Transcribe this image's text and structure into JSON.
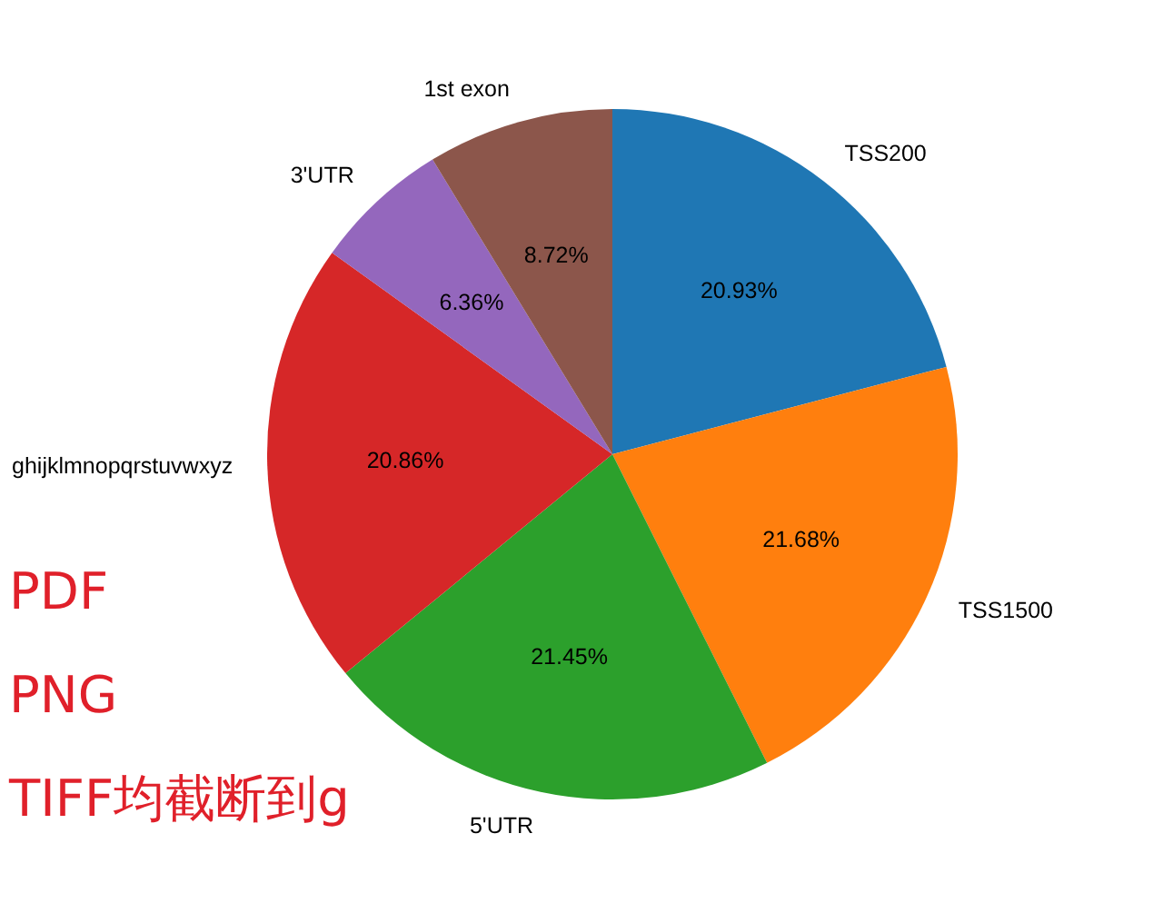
{
  "chart_data": {
    "type": "pie",
    "categories": [
      "TSS200",
      "TSS1500",
      "5'UTR",
      "ghijklmnopqrstuvwxyz",
      "3'UTR",
      "1st exon"
    ],
    "values": [
      20.93,
      21.68,
      21.45,
      20.86,
      6.36,
      8.72
    ],
    "colors": [
      "#1f77b4",
      "#ff7f0e",
      "#2ca02c",
      "#d62728",
      "#9467bd",
      "#8c564b"
    ],
    "value_labels": [
      "20.93%",
      "21.68%",
      "21.45%",
      "20.86%",
      "6.36%",
      "8.72%"
    ],
    "annotations": [
      "PDF",
      "PNG",
      "TIFF均截断到g"
    ]
  }
}
